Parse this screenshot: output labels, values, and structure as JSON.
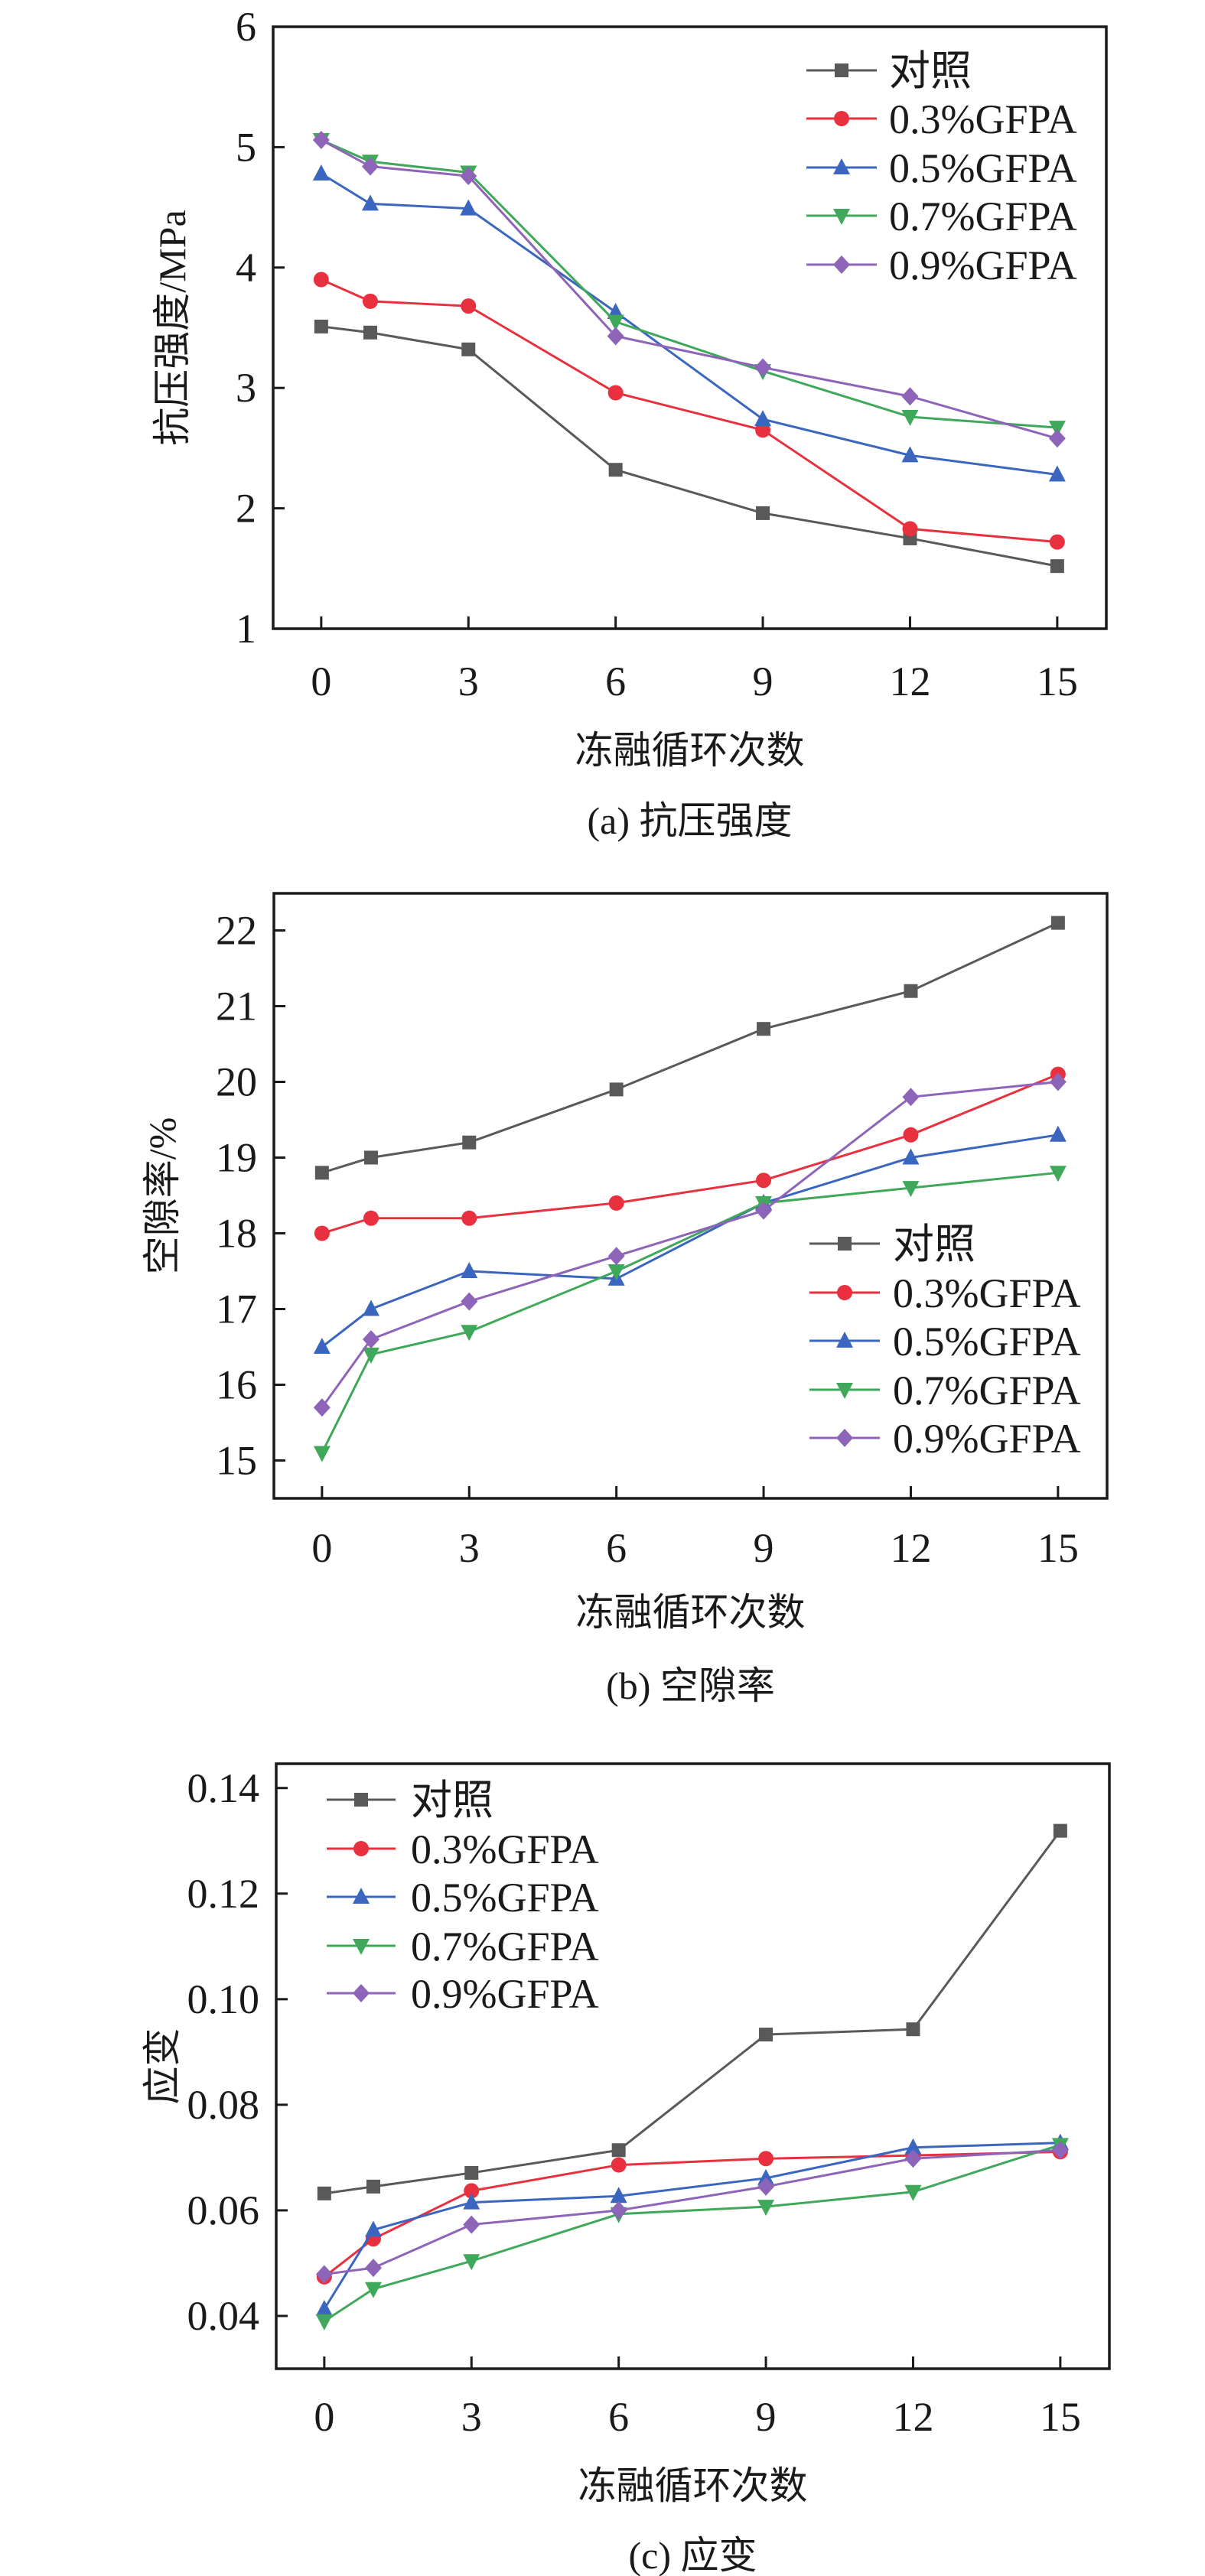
{
  "chart_data": [
    {
      "type": "line",
      "title": "(a) 抗压强度",
      "xlabel": "冻融循环次数",
      "ylabel": "抗压强度/MPa",
      "x": [
        0,
        1,
        3,
        6,
        9,
        12,
        15
      ],
      "xticks": [
        0,
        3,
        6,
        9,
        12,
        15
      ],
      "yticks": [
        1,
        2,
        3,
        4,
        5,
        6
      ],
      "xlim": [
        -0.98,
        16
      ],
      "ylim": [
        1,
        6
      ],
      "legend": "top-right",
      "grid": false,
      "series": [
        {
          "name": "对照",
          "color": "#595959",
          "marker": "square",
          "values": [
            3.51,
            3.46,
            3.32,
            2.32,
            1.96,
            1.75,
            1.52
          ]
        },
        {
          "name": "0.3%GFPA",
          "color": "#e8303f",
          "marker": "circle",
          "values": [
            3.9,
            3.72,
            3.68,
            2.96,
            2.65,
            1.83,
            1.72
          ]
        },
        {
          "name": "0.5%GFPA",
          "color": "#3b66c0",
          "marker": "triangle-up",
          "values": [
            4.78,
            4.53,
            4.49,
            3.63,
            2.74,
            2.44,
            2.28
          ]
        },
        {
          "name": "0.7%GFPA",
          "color": "#3fa85a",
          "marker": "triangle-down",
          "values": [
            5.06,
            4.88,
            4.79,
            3.55,
            3.14,
            2.76,
            2.67
          ]
        },
        {
          "name": "0.9%GFPA",
          "color": "#8e64b8",
          "marker": "diamond",
          "values": [
            5.06,
            4.84,
            4.76,
            3.43,
            3.17,
            2.93,
            2.58
          ]
        }
      ]
    },
    {
      "type": "line",
      "title": "(b) 空隙率",
      "xlabel": "冻融循环次数",
      "ylabel": "空隙率/%",
      "x": [
        0,
        1,
        3,
        6,
        9,
        12,
        15
      ],
      "xticks": [
        0,
        3,
        6,
        9,
        12,
        15
      ],
      "yticks": [
        15,
        16,
        17,
        18,
        19,
        20,
        21,
        22
      ],
      "xlim": [
        -0.98,
        16
      ],
      "ylim": [
        14.5,
        22.49
      ],
      "legend": "lower-right",
      "grid": false,
      "series": [
        {
          "name": "对照",
          "color": "#595959",
          "marker": "square",
          "values": [
            18.8,
            19.0,
            19.2,
            19.9,
            20.7,
            21.2,
            22.1
          ]
        },
        {
          "name": "0.3%GFPA",
          "color": "#e8303f",
          "marker": "circle",
          "values": [
            18.0,
            18.2,
            18.2,
            18.4,
            18.7,
            19.3,
            20.1
          ]
        },
        {
          "name": "0.5%GFPA",
          "color": "#3b66c0",
          "marker": "triangle-up",
          "values": [
            16.5,
            17.0,
            17.5,
            17.4,
            18.4,
            19.0,
            19.3
          ]
        },
        {
          "name": "0.7%GFPA",
          "color": "#3fa85a",
          "marker": "triangle-down",
          "values": [
            15.1,
            16.4,
            16.7,
            17.5,
            18.4,
            18.6,
            18.8
          ]
        },
        {
          "name": "0.9%GFPA",
          "color": "#8e64b8",
          "marker": "diamond",
          "values": [
            15.7,
            16.6,
            17.1,
            17.7,
            18.3,
            19.8,
            20.0
          ]
        }
      ]
    },
    {
      "type": "line",
      "title": "(c) 应变",
      "xlabel": "冻融循环次数",
      "ylabel": "应变",
      "x": [
        0,
        1,
        3,
        6,
        9,
        12,
        15
      ],
      "xticks": [
        0,
        3,
        6,
        9,
        12,
        15
      ],
      "yticks": [
        "0.04",
        "0.06",
        "0.08",
        "0.10",
        "0.12",
        "0.14"
      ],
      "xlim": [
        -0.98,
        16
      ],
      "ylim": [
        0.03,
        0.1446
      ],
      "legend": "top-left",
      "grid": false,
      "series": [
        {
          "name": "对照",
          "color": "#595959",
          "marker": "square",
          "values": [
            0.0632,
            0.0645,
            0.0671,
            0.0714,
            0.0933,
            0.0943,
            0.1319
          ]
        },
        {
          "name": "0.3%GFPA",
          "color": "#e8303f",
          "marker": "circle",
          "values": [
            0.0474,
            0.0546,
            0.0637,
            0.0686,
            0.0698,
            0.0704,
            0.0711
          ]
        },
        {
          "name": "0.5%GFPA",
          "color": "#3b66c0",
          "marker": "triangle-up",
          "values": [
            0.0413,
            0.0563,
            0.0615,
            0.0627,
            0.0661,
            0.0719,
            0.0728
          ]
        },
        {
          "name": "0.7%GFPA",
          "color": "#3fa85a",
          "marker": "triangle-down",
          "values": [
            0.039,
            0.0451,
            0.0504,
            0.0593,
            0.0607,
            0.0635,
            0.0724
          ]
        },
        {
          "name": "0.9%GFPA",
          "color": "#8e64b8",
          "marker": "diamond",
          "values": [
            0.0479,
            0.0491,
            0.0573,
            0.06,
            0.0645,
            0.0698,
            0.0714
          ]
        }
      ]
    }
  ]
}
